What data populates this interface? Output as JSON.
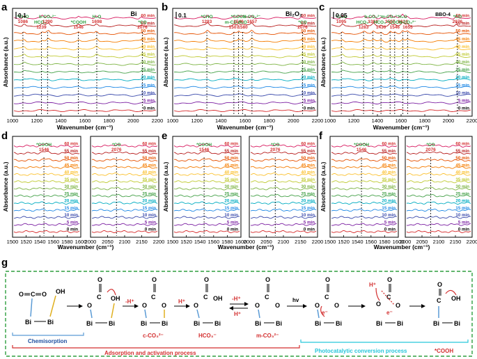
{
  "colors": {
    "trace": [
      "#d62728",
      "#7b1fa2",
      "#3949ab",
      "#1e88e5",
      "#00acc1",
      "#43a047",
      "#7cb342",
      "#c0ca33",
      "#fbc02d",
      "#f57c00",
      "#e65100",
      "#b71c1c",
      "#d81b60",
      "#8e24aa",
      "#5e35b1"
    ],
    "annotation_green": "#2e9e3e",
    "annotation_red": "#d32f2f",
    "panel_border": "#2e9e3e",
    "cyan": "#26c6da",
    "bond_blue": "#5b9bd5",
    "bond_gold": "#e0b020"
  },
  "chart_data": [
    {
      "id": "a",
      "type": "line",
      "title": "Bi",
      "xlabel": "Wavenumber (cm⁻¹)",
      "ylabel": "Absorbance (a.u.)",
      "xlim": [
        1000,
        2200
      ],
      "xticks": [
        "1000",
        "1200",
        "1400",
        "1600",
        "1800",
        "2000",
        "2200"
      ],
      "scale_label": "0.1",
      "time_labels": [
        "0 min",
        "5 min",
        "10 min",
        "15 min",
        "20 min",
        "25 min",
        "30 min",
        "35 min",
        "40 min",
        "45 min",
        "50 min",
        "55 min",
        "60 min"
      ],
      "peaks": [
        {
          "x": 1086,
          "name": "*CHO",
          "value": "1086"
        },
        {
          "x": 1239,
          "name": "HCO₃⁻",
          "value": "1239"
        },
        {
          "x": 1290,
          "name": "b-CO₃²⁻",
          "value": "1290"
        },
        {
          "x": 1546,
          "name": "*COOH",
          "value": "1546"
        },
        {
          "x": 1698,
          "name": "H₂O",
          "value": "1698"
        },
        {
          "x": 2076,
          "name": "*CO",
          "value": "2076"
        }
      ]
    },
    {
      "id": "b",
      "type": "line",
      "title": "Bi₂O₂",
      "xlabel": "Wavenumber (cm⁻¹)",
      "ylabel": "Absorbance (a.u.)",
      "xlim": [
        1000,
        2200
      ],
      "xticks": [
        "1000",
        "1200",
        "1400",
        "1600",
        "1800",
        "2000",
        "2200"
      ],
      "scale_label": "0.1",
      "time_labels": [
        "0 min",
        "5 min",
        "10 min",
        "15 min",
        "20 min",
        "25 min",
        "30 min",
        "35 min",
        "40 min",
        "45 min",
        "50 min",
        "55 min",
        "60 min"
      ],
      "peaks": [
        {
          "x": 1283,
          "name": "*CHO",
          "value": "1283"
        },
        {
          "x": 1507,
          "name": "m-CO₃²⁻",
          "value": "1507"
        },
        {
          "x": 1546,
          "name": "*COOH",
          "value": "1546"
        },
        {
          "x": 1580,
          "name": "H₂O",
          "value": "1580"
        },
        {
          "x": 1657,
          "name": "b-CO₃²⁻",
          "value": "1657"
        },
        {
          "x": 2076,
          "name": "*CO",
          "value": "2076"
        }
      ]
    },
    {
      "id": "c",
      "type": "line",
      "title": "BBO-4",
      "xlabel": "Wavenumber (cm⁻¹)",
      "ylabel": "Absorbance (a.u.)",
      "xlim": [
        1000,
        2200
      ],
      "xticks": [
        "1000",
        "1200",
        "1400",
        "1600",
        "1800",
        "2000",
        "2200"
      ],
      "scale_label": "0.05",
      "time_labels": [
        "0 min",
        "5 min",
        "10 min",
        "15 min",
        "20 min",
        "25 min",
        "30 min",
        "35 min",
        "40 min",
        "45 min",
        "50 min",
        "55 min",
        "60 min"
      ],
      "peaks": [
        {
          "x": 1095,
          "name": "*CHO",
          "value": "1095"
        },
        {
          "x": 1283,
          "name": "HCO₃⁻",
          "value": "1283"
        },
        {
          "x": 1362,
          "name": "b-CO₃²⁻",
          "value": "1362"
        },
        {
          "x": 1430,
          "name": "HCO₃⁻",
          "value": "1430"
        },
        {
          "x": 1507,
          "name": "m-CO₃²⁻",
          "value": "1507"
        },
        {
          "x": 1546,
          "name": "*COOH",
          "value": "1546"
        },
        {
          "x": 1614,
          "name": "H₂O",
          "value": "1614"
        },
        {
          "x": 1655,
          "name": "b-CO₃²⁻",
          "value": "1655"
        },
        {
          "x": 2076,
          "name": "*CO",
          "value": "2076"
        }
      ]
    },
    {
      "id": "d1",
      "type": "line",
      "xlim": [
        1500,
        1600
      ],
      "xticks": [
        "1500",
        "1520",
        "1540",
        "1560",
        "1580",
        "1600"
      ],
      "ylabel": "Absorbance (a.u.)",
      "time_labels": [
        "0 min",
        "5 min",
        "10 min",
        "15 min",
        "20 min",
        "25 min",
        "30 min",
        "35 min",
        "40 min",
        "45 min",
        "50 min",
        "55 min",
        "60 min"
      ],
      "peaks": [
        {
          "x": 1546,
          "name": "*COOH",
          "value": "1546"
        }
      ]
    },
    {
      "id": "d2",
      "type": "line",
      "xlim": [
        2000,
        2200
      ],
      "xticks": [
        "2000",
        "2050",
        "2100",
        "2150",
        "2200"
      ],
      "time_labels": [
        "0 min",
        "5 min",
        "10 min",
        "15 min",
        "20 min",
        "25 min",
        "30 min",
        "35 min",
        "40 min",
        "45 min",
        "50 min",
        "55 min",
        "60 min"
      ],
      "peaks": [
        {
          "x": 2076,
          "name": "*CO",
          "value": "2076"
        }
      ]
    },
    {
      "id": "e1",
      "type": "line",
      "xlim": [
        1500,
        1600
      ],
      "xticks": [
        "1500",
        "1520",
        "1540",
        "1560",
        "1580",
        "1600"
      ],
      "ylabel": "Absorbance (a.u.)",
      "time_labels": [
        "0 min",
        "5 min",
        "10 min",
        "15 min",
        "20 min",
        "25 min",
        "30 min",
        "35 min",
        "40 min",
        "45 min",
        "50 min",
        "55 min",
        "60 min"
      ],
      "peaks": [
        {
          "x": 1546,
          "name": "*COOH",
          "value": "1546"
        }
      ]
    },
    {
      "id": "e2",
      "type": "line",
      "xlim": [
        2000,
        2200
      ],
      "xticks": [
        "2000",
        "2050",
        "2100",
        "2150",
        "2200"
      ],
      "time_labels": [
        "0 min",
        "5 min",
        "10 min",
        "15 min",
        "20 min",
        "25 min",
        "30 min",
        "35 min",
        "40 min",
        "45 min",
        "50 min",
        "55 min",
        "60 min"
      ],
      "peaks": [
        {
          "x": 2076,
          "name": "*CO",
          "value": "2076"
        }
      ]
    },
    {
      "id": "f1",
      "type": "line",
      "xlim": [
        1500,
        1600
      ],
      "xticks": [
        "1500",
        "1520",
        "1540",
        "1560",
        "1580",
        "1600"
      ],
      "ylabel": "Absorbance (a.u.)",
      "time_labels": [
        "0 min",
        "5 min",
        "10 min",
        "15 min",
        "20 min",
        "25 min",
        "30 min",
        "35 min",
        "40 min",
        "45 min",
        "50 min",
        "55 min",
        "60 min"
      ],
      "peaks": [
        {
          "x": 1546,
          "name": "*COOH",
          "value": "1546"
        }
      ]
    },
    {
      "id": "f2",
      "type": "line",
      "xlim": [
        2000,
        2200
      ],
      "xticks": [
        "2000",
        "2050",
        "2100",
        "2150",
        "2200"
      ],
      "time_labels": [
        "0 min",
        "5 min",
        "10 min",
        "15 min",
        "20 min",
        "25 min",
        "30 min",
        "35 min",
        "40 min",
        "45 min",
        "50 min",
        "55 min",
        "60 min"
      ],
      "peaks": [
        {
          "x": 2076,
          "name": "*CO",
          "value": "2076"
        }
      ]
    }
  ],
  "shared": {
    "wavenumber_label": "Wavenumber (cm⁻¹)"
  },
  "panels": {
    "a": "a",
    "b": "b",
    "c": "c",
    "d": "d",
    "e": "e",
    "f": "f",
    "g": "g"
  },
  "scheme": {
    "steps": [
      "-H⁺",
      "H⁺",
      "-H⁺",
      "H⁺",
      "hv"
    ],
    "species": [
      "c-CO₃²⁻",
      "HCO₃⁻",
      "m-CO₃²⁻",
      "*COOH"
    ],
    "chemisorption": "Chemisorption",
    "adsorption_process": "Adsorption and activation process",
    "photocatalytic_process": "Photocatalytic conversion process",
    "atoms": {
      "bi": "Bi",
      "o": "O",
      "c": "C",
      "h": "H",
      "oh": "OH",
      "electron": "e⁻",
      "h_plus": "H⁺"
    }
  }
}
